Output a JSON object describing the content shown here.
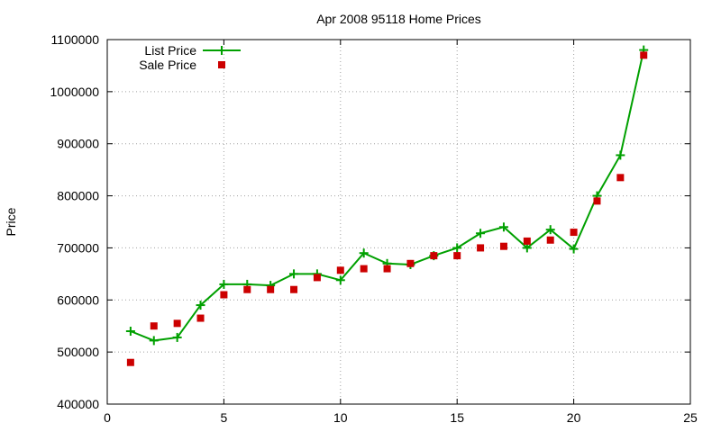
{
  "chart_data": {
    "type": "line",
    "title": "Apr 2008 95118 Home Prices",
    "xlabel": "",
    "ylabel": "Price",
    "xlim": [
      0,
      25
    ],
    "ylim": [
      400000,
      1100000
    ],
    "x_ticks": [
      "0",
      "5",
      "10",
      "15",
      "20",
      "25"
    ],
    "y_ticks": [
      "400000",
      "500000",
      "600000",
      "700000",
      "800000",
      "900000",
      "1000000",
      "1100000"
    ],
    "grid": true,
    "legend_position": "top-left",
    "x": [
      1,
      2,
      3,
      4,
      5,
      6,
      7,
      8,
      9,
      10,
      11,
      12,
      13,
      14,
      15,
      16,
      17,
      18,
      19,
      20,
      21,
      22,
      23
    ],
    "series": [
      {
        "name": "List Price",
        "style": "line-with-plus-markers",
        "color": "#00a000",
        "values": [
          540000,
          522000,
          528000,
          590000,
          630000,
          630000,
          628000,
          650000,
          650000,
          638000,
          690000,
          670000,
          668000,
          685000,
          700000,
          728000,
          740000,
          700000,
          735000,
          698000,
          800000,
          878000,
          1080000
        ]
      },
      {
        "name": "Sale Price",
        "style": "square-markers",
        "color": "#cc0000",
        "values": [
          480000,
          550000,
          555000,
          565000,
          610000,
          620000,
          620000,
          620000,
          643000,
          657000,
          660000,
          660000,
          670000,
          685000,
          685000,
          700000,
          703000,
          713000,
          715000,
          730000,
          790000,
          835000,
          1070000
        ]
      }
    ]
  }
}
